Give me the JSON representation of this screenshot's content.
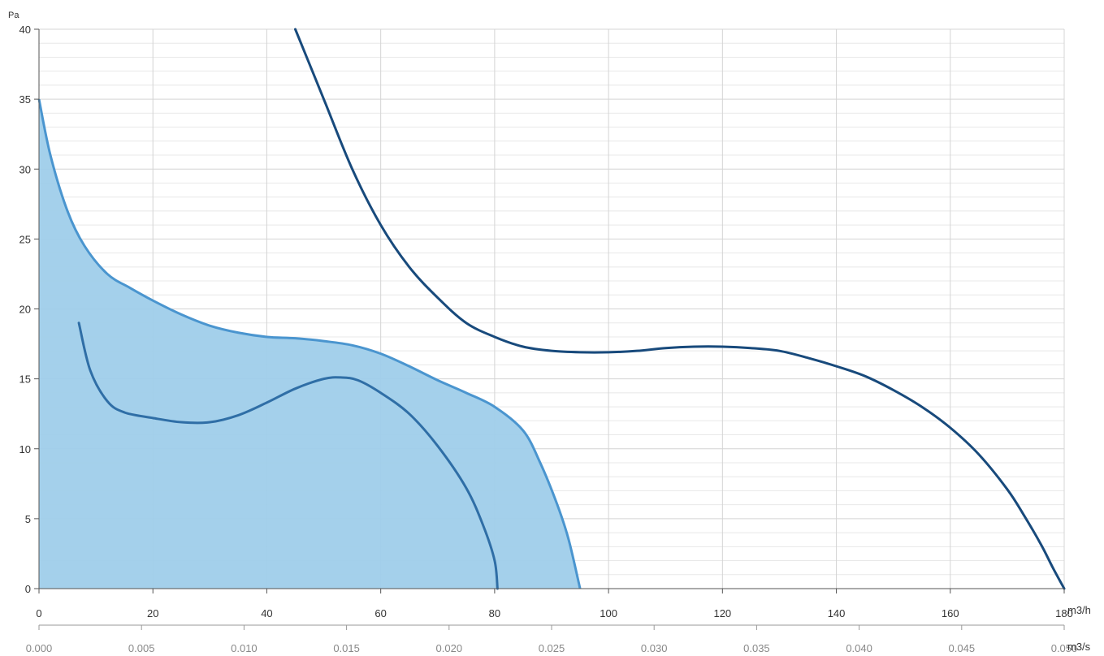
{
  "chart_data": {
    "type": "line",
    "y_unit": "Pa",
    "x_unit": "m3/h",
    "x2_unit": "m3/s",
    "xlim": [
      0,
      180
    ],
    "ylim": [
      0,
      40
    ],
    "x_ticks": [
      "0",
      "20",
      "40",
      "60",
      "80",
      "100",
      "120",
      "140",
      "160",
      "180"
    ],
    "x2_ticks": [
      "0.000",
      "0.005",
      "0.010",
      "0.015",
      "0.020",
      "0.025",
      "0.030",
      "0.035",
      "0.040",
      "0.045",
      "0.050"
    ],
    "y_ticks": [
      "0",
      "5",
      "10",
      "15",
      "20",
      "25",
      "30",
      "35",
      "40"
    ],
    "grid": true,
    "colors": {
      "area_fill": "#9fcdea",
      "area_line": "#4a95cf",
      "inner_curve": "#2f6ea6",
      "outer_curve": "#184a7c",
      "grid_major": "#d4d4d4",
      "grid_minor": "#e8e8e8"
    },
    "series": [
      {
        "kind": "area",
        "points": [
          [
            0,
            35
          ],
          [
            2,
            31
          ],
          [
            5,
            27
          ],
          [
            8,
            24.5
          ],
          [
            12,
            22.5
          ],
          [
            16,
            21.5
          ],
          [
            20,
            20.6
          ],
          [
            25,
            19.6
          ],
          [
            30,
            18.8
          ],
          [
            35,
            18.3
          ],
          [
            40,
            18
          ],
          [
            45,
            17.9
          ],
          [
            50,
            17.7
          ],
          [
            55,
            17.4
          ],
          [
            60,
            16.8
          ],
          [
            65,
            15.9
          ],
          [
            70,
            14.9
          ],
          [
            75,
            14
          ],
          [
            80,
            13
          ],
          [
            85,
            11.3
          ],
          [
            88,
            9
          ],
          [
            91,
            6
          ],
          [
            93,
            3.5
          ],
          [
            95,
            0
          ]
        ]
      },
      {
        "kind": "line",
        "points": [
          [
            7,
            19
          ],
          [
            9,
            15.6
          ],
          [
            12,
            13.4
          ],
          [
            15,
            12.6
          ],
          [
            20,
            12.2
          ],
          [
            25,
            11.9
          ],
          [
            30,
            11.9
          ],
          [
            35,
            12.4
          ],
          [
            40,
            13.3
          ],
          [
            45,
            14.3
          ],
          [
            50,
            15
          ],
          [
            53,
            15.1
          ],
          [
            56,
            14.9
          ],
          [
            60,
            14
          ],
          [
            65,
            12.5
          ],
          [
            70,
            10.2
          ],
          [
            75,
            7.2
          ],
          [
            78,
            4.5
          ],
          [
            80,
            2
          ],
          [
            80.5,
            0
          ]
        ]
      },
      {
        "kind": "line",
        "points": [
          [
            45,
            40
          ],
          [
            50,
            35
          ],
          [
            55,
            30
          ],
          [
            60,
            26
          ],
          [
            65,
            23
          ],
          [
            70,
            20.8
          ],
          [
            75,
            19
          ],
          [
            80,
            18
          ],
          [
            85,
            17.3
          ],
          [
            90,
            17
          ],
          [
            95,
            16.9
          ],
          [
            100,
            16.9
          ],
          [
            105,
            17
          ],
          [
            110,
            17.2
          ],
          [
            115,
            17.3
          ],
          [
            120,
            17.3
          ],
          [
            125,
            17.2
          ],
          [
            130,
            17
          ],
          [
            135,
            16.5
          ],
          [
            140,
            15.9
          ],
          [
            145,
            15.2
          ],
          [
            150,
            14.2
          ],
          [
            155,
            13
          ],
          [
            160,
            11.5
          ],
          [
            165,
            9.6
          ],
          [
            170,
            7.1
          ],
          [
            173,
            5.2
          ],
          [
            176,
            3.1
          ],
          [
            178,
            1.5
          ],
          [
            180,
            0
          ]
        ]
      }
    ]
  }
}
